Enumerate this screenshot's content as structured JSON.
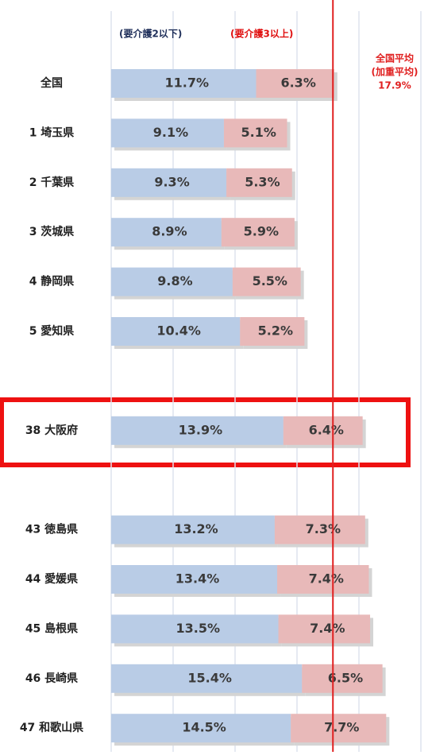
{
  "chart_data": {
    "type": "stacked-bar-horizontal",
    "categories": [
      "全国",
      "1 埼玉県",
      "2 千葉県",
      "3 茨城県",
      "4 静岡県",
      "5 愛知県",
      null,
      "38 大阪府",
      null,
      "43 徳島県",
      "44 愛媛県",
      "45 島根県",
      "46 長崎県",
      "47 和歌山県"
    ],
    "series": [
      {
        "name": "(要介護2以下)",
        "color": "#b9cce6",
        "values": [
          11.7,
          9.1,
          9.3,
          8.9,
          9.8,
          10.4,
          null,
          13.9,
          null,
          13.2,
          13.4,
          13.5,
          15.4,
          14.5
        ],
        "value_labels": [
          "11.7%",
          "9.1%",
          "9.3%",
          "8.9%",
          "9.8%",
          "10.4%",
          null,
          "13.9%",
          null,
          "13.2%",
          "13.4%",
          "13.5%",
          "15.4%",
          "14.5%"
        ]
      },
      {
        "name": "(要介護3以上)",
        "color": "#e8b9b9",
        "values": [
          6.3,
          5.1,
          5.3,
          5.9,
          5.5,
          5.2,
          null,
          6.4,
          null,
          7.3,
          7.4,
          7.4,
          6.5,
          7.7
        ],
        "value_labels": [
          "6.3%",
          "5.1%",
          "5.3%",
          "5.9%",
          "5.5%",
          "5.2%",
          null,
          "6.4%",
          null,
          "7.3%",
          "7.4%",
          "7.4%",
          "6.5%",
          "7.7%"
        ]
      }
    ],
    "xlim": [
      0,
      25
    ],
    "xticks": [
      0,
      5,
      10,
      15,
      20,
      25
    ],
    "grid": true,
    "reference_line": {
      "value": 17.9,
      "color": "#e02020",
      "label": [
        "全国平均",
        "(加重平均)",
        "17.9%"
      ]
    }
  }
}
